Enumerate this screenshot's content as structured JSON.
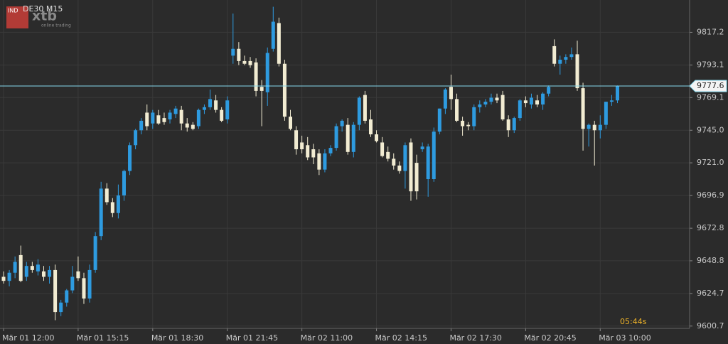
{
  "chart_data": {
    "type": "candlestick",
    "title": "DE30 M15",
    "logo": {
      "badge": "IND",
      "brand": "xtb",
      "tagline": "online trading"
    },
    "countdown": "05:44s",
    "up_color": "#2e9be0",
    "down_color": "#f2ecd2",
    "current_price": 9777.6,
    "current_price_color": "#86d8ee",
    "grid": true,
    "ylim": [
      9599,
      9841
    ],
    "yticks": [
      9817.2,
      9793.1,
      9769.1,
      {
        "value": 9745,
        "label": "9745.0"
      },
      {
        "value": 9721,
        "label": "9721.0"
      },
      9696.9,
      9672.8,
      9648.8,
      9624.7,
      9600.7
    ],
    "categories": [
      "Mär 01 12:00",
      null,
      null,
      null,
      null,
      null,
      null,
      null,
      null,
      null,
      null,
      null,
      null,
      "Mär 01 15:15",
      null,
      null,
      null,
      null,
      null,
      null,
      null,
      null,
      null,
      null,
      null,
      null,
      "Mär 01 18:30",
      null,
      null,
      null,
      null,
      null,
      null,
      null,
      null,
      null,
      null,
      null,
      null,
      "Mär 01 21:45",
      null,
      null,
      null,
      null,
      null,
      null,
      null,
      null,
      null,
      null,
      null,
      null,
      "Mär 02 11:00",
      null,
      null,
      null,
      null,
      null,
      null,
      null,
      null,
      null,
      null,
      null,
      null,
      "Mär 02 14:15",
      null,
      null,
      null,
      null,
      null,
      null,
      null,
      null,
      null,
      null,
      null,
      null,
      "Mär 02 17:30",
      null,
      null,
      null,
      null,
      null,
      null,
      null,
      null,
      null,
      null,
      null,
      null,
      "Mär 02 20:45",
      null,
      null,
      null,
      null,
      null,
      null,
      null,
      null,
      null,
      null,
      null,
      null,
      "Mär 03 10:00",
      null,
      null,
      null
    ],
    "open": [
      9637,
      9634,
      9640,
      9653,
      9637,
      9645,
      9641,
      9641,
      9637,
      9642,
      9611,
      9618,
      9627,
      9641,
      9636,
      9621,
      9642,
      9667,
      9702,
      9692,
      9684,
      9697,
      9715,
      9734,
      9745,
      9758,
      9750,
      9756,
      9754,
      9753,
      9757,
      9760,
      9750,
      9749,
      9748,
      9760,
      9762,
      9767,
      9760,
      9753,
      9800,
      9805,
      9796,
      9796,
      9795,
      9777,
      9773,
      9805,
      9824,
      9794,
      9755,
      9745,
      9736,
      9734,
      9731,
      9728,
      9716,
      9728,
      9732,
      9748,
      9749,
      9729,
      9749,
      9771,
      9753,
      9742,
      9736,
      9729,
      9724,
      9719,
      9715,
      9736,
      9721,
      9731,
      9709,
      9709,
      9744,
      9761,
      9777,
      9768,
      9752,
      9749,
      9748,
      9762,
      9764,
      9766,
      9769,
      9771,
      9753,
      9745,
      9754,
      9767,
      9764,
      9767,
      9764,
      9772,
      9807,
      9794,
      9797,
      9799,
      9801,
      9776,
      9746,
      9749,
      9745,
      9749,
      9766,
      9767
    ],
    "high": [
      9641,
      9642,
      9652,
      9660,
      9648,
      9648,
      9650,
      9645,
      9645,
      9646,
      9620,
      9628,
      9645,
      9652,
      9640,
      9646,
      9670,
      9707,
      9706,
      9695,
      9705,
      9716,
      9736,
      9746,
      9754,
      9764,
      9760,
      9760,
      9758,
      9760,
      9763,
      9763,
      9754,
      9751,
      9761,
      9764,
      9775,
      9771,
      9762,
      9770,
      9831,
      9810,
      9800,
      9799,
      9798,
      9782,
      9806,
      9836,
      9828,
      9797,
      9760,
      9748,
      9741,
      9740,
      9735,
      9731,
      9731,
      9734,
      9750,
      9753,
      9754,
      9751,
      9770,
      9774,
      9760,
      9745,
      9740,
      9733,
      9728,
      9722,
      9736,
      9739,
      9727,
      9736,
      9735,
      9747,
      9761,
      9776,
      9786,
      9772,
      9755,
      9751,
      9764,
      9767,
      9768,
      9772,
      9772,
      9774,
      9756,
      9755,
      9768,
      9770,
      9772,
      9771,
      9773,
      9778,
      9812,
      9800,
      9801,
      9806,
      9811,
      9780,
      9750,
      9752,
      9756,
      9766,
      9771,
      9778
    ],
    "low": [
      9632,
      9630,
      9636,
      9633,
      9634,
      9640,
      9638,
      9634,
      9632,
      9605,
      9608,
      9615,
      9625,
      9634,
      9617,
      9618,
      9640,
      9664,
      9690,
      9681,
      9680,
      9693,
      9712,
      9731,
      9742,
      9745,
      9746,
      9749,
      9749,
      9750,
      9754,
      9745,
      9744,
      9745,
      9746,
      9757,
      9760,
      9758,
      9751,
      9750,
      9794,
      9793,
      9793,
      9791,
      9770,
      9748,
      9763,
      9803,
      9792,
      9752,
      9745,
      9727,
      9728,
      9723,
      9720,
      9712,
      9714,
      9726,
      9730,
      9744,
      9727,
      9725,
      9745,
      9750,
      9740,
      9736,
      9725,
      9722,
      9716,
      9713,
      9702,
      9693,
      9694,
      9729,
      9696,
      9707,
      9742,
      9757,
      9760,
      9751,
      9741,
      9745,
      9745,
      9758,
      9762,
      9764,
      9765,
      9752,
      9740,
      9743,
      9752,
      9762,
      9761,
      9762,
      9760,
      9770,
      9792,
      9786,
      9794,
      9797,
      9774,
      9730,
      9733,
      9719,
      9739,
      9746,
      9763,
      9765
    ],
    "close": [
      9634,
      9640,
      9648,
      9634,
      9645,
      9642,
      9646,
      9637,
      9642,
      9611,
      9618,
      9627,
      9637,
      9636,
      9621,
      9642,
      9667,
      9702,
      9692,
      9684,
      9697,
      9715,
      9734,
      9745,
      9752,
      9748,
      9758,
      9750,
      9751,
      9758,
      9761,
      9750,
      9747,
      9746,
      9760,
      9762,
      9768,
      9760,
      9752,
      9767,
      9805,
      9796,
      9794,
      9793,
      9774,
      9774,
      9802,
      9825,
      9794,
      9755,
      9746,
      9731,
      9731,
      9725,
      9725,
      9716,
      9728,
      9732,
      9748,
      9752,
      9729,
      9749,
      9769,
      9752,
      9742,
      9737,
      9726,
      9724,
      9719,
      9715,
      9734,
      9700,
      9700,
      9733,
      9733,
      9744,
      9761,
      9775,
      9768,
      9752,
      9748,
      9748,
      9762,
      9764,
      9766,
      9769,
      9767,
      9753,
      9745,
      9754,
      9767,
      9765,
      9769,
      9764,
      9772,
      9777,
      9794,
      9797,
      9799,
      9801,
      9776,
      9746,
      9749,
      9745,
      9749,
      9766,
      9767,
      9777.6
    ]
  }
}
